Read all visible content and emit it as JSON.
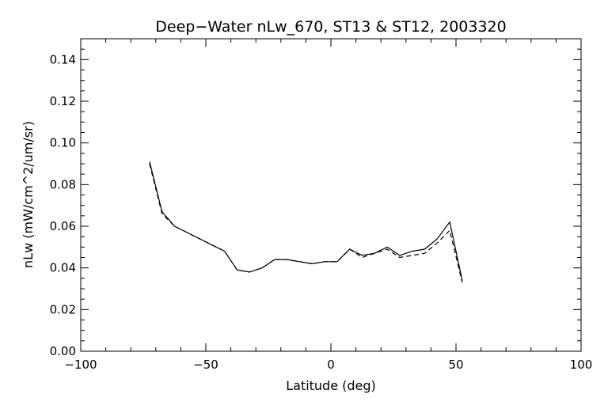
{
  "chart_data": {
    "type": "line",
    "title": "Deep−Water nLw_670, ST13 & ST12, 2003320",
    "xlabel": "Latitude (deg)",
    "ylabel": "nLw (mW/cm^2/um/sr)",
    "xlim": [
      -100,
      100
    ],
    "ylim": [
      0.0,
      0.15
    ],
    "xticks": [
      -100,
      -50,
      0,
      50,
      100
    ],
    "xtick_labels": [
      "−100",
      "−50",
      "0",
      "50",
      "100"
    ],
    "yticks": [
      0.0,
      0.02,
      0.04,
      0.06,
      0.08,
      0.1,
      0.12,
      0.14
    ],
    "ytick_labels": [
      "0.00",
      "0.02",
      "0.04",
      "0.06",
      "0.08",
      "0.10",
      "0.12",
      "0.14"
    ],
    "grid": false,
    "legend": "none",
    "series": [
      {
        "line_style": "solid",
        "x": [
          -72.5,
          -67.5,
          -62.5,
          -57.5,
          -52.5,
          -47.5,
          -42.5,
          -37.5,
          -32.5,
          -27.5,
          -22.5,
          -17.5,
          -12.5,
          -7.5,
          -2.5,
          2.5,
          7.5,
          12.5,
          17.5,
          22.5,
          27.5,
          32.5,
          37.5,
          42.5,
          47.5,
          52.5
        ],
        "y": [
          0.091,
          0.067,
          0.06,
          0.057,
          0.054,
          0.051,
          0.048,
          0.039,
          0.038,
          0.04,
          0.044,
          0.044,
          0.043,
          0.042,
          0.043,
          0.043,
          0.049,
          0.046,
          0.047,
          0.05,
          0.046,
          0.048,
          0.049,
          0.054,
          0.062,
          0.034
        ]
      },
      {
        "line_style": "dashed",
        "x": [
          -72.5,
          -67.5,
          -62.5,
          -57.5,
          -52.5,
          -47.5,
          -42.5,
          -37.5,
          -32.5,
          -27.5,
          -22.5,
          -17.5,
          -12.5,
          -7.5,
          -2.5,
          2.5,
          7.5,
          12.5,
          17.5,
          22.5,
          27.5,
          32.5,
          37.5,
          42.5,
          47.5,
          52.5
        ],
        "y": [
          0.09,
          0.066,
          0.06,
          0.057,
          0.054,
          0.051,
          0.048,
          0.039,
          0.038,
          0.04,
          0.044,
          0.044,
          0.043,
          0.042,
          0.043,
          0.043,
          0.049,
          0.045,
          0.047,
          0.049,
          0.045,
          0.046,
          0.047,
          0.052,
          0.058,
          0.033
        ]
      }
    ]
  }
}
